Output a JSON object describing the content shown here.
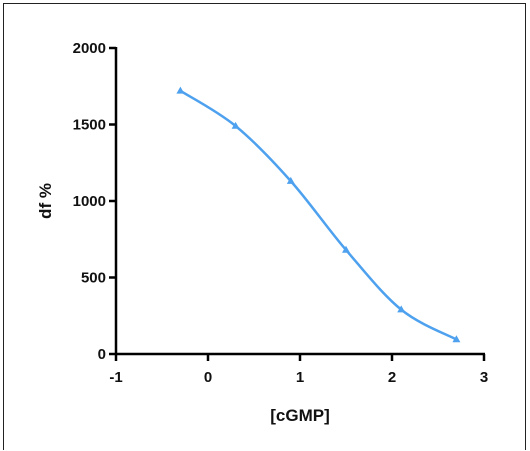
{
  "chart_data": {
    "type": "line",
    "title": "",
    "xlabel": "[cGMP]",
    "ylabel": "df %",
    "xlim": [
      -1,
      3
    ],
    "ylim": [
      0,
      2000
    ],
    "xticks": [
      -1,
      0,
      1,
      2,
      3
    ],
    "yticks": [
      0,
      500,
      1000,
      1500,
      2000
    ],
    "xtick_labels": [
      "-1",
      "0",
      "1",
      "2",
      "3"
    ],
    "ytick_labels": [
      "0",
      "500",
      "1000",
      "1500",
      "2000"
    ],
    "grid": false,
    "series": [
      {
        "name": "",
        "marker": "triangle",
        "color": "#4ea1ee",
        "x": [
          -0.3,
          0.3,
          0.9,
          1.5,
          2.1,
          2.7
        ],
        "y": [
          1720,
          1490,
          1130,
          680,
          290,
          95
        ]
      }
    ]
  }
}
